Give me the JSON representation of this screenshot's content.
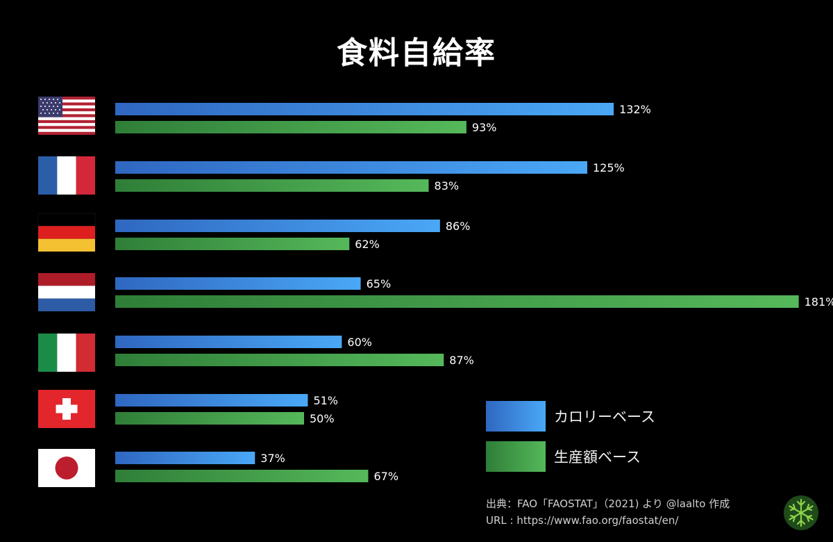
{
  "title": "食料自給率",
  "legend": {
    "calorie_label": "カロリーベース",
    "production_label": "生産額ベース"
  },
  "colors": {
    "calorie_start": "#2f67c1",
    "calorie_end": "#4aa8f6",
    "production_start": "#2f7e38",
    "production_end": "#55b85a",
    "background": "#000000"
  },
  "source": {
    "line1": "出典：FAO「FAOSTAT」（2021) より @laalto 作成",
    "line2": "URL : https://www.fao.org/faostat/en/"
  },
  "chart_data": {
    "type": "bar",
    "orientation": "horizontal",
    "title": "食料自給率",
    "categories": [
      "us-flag",
      "france-flag",
      "germany-flag",
      "netherlands-flag",
      "italy-flag",
      "switzerland-flag",
      "japan-flag"
    ],
    "series": [
      {
        "name": "カロリーベース",
        "values": [
          132,
          125,
          86,
          65,
          60,
          51,
          37
        ]
      },
      {
        "name": "生産額ベース",
        "values": [
          93,
          83,
          62,
          181,
          87,
          50,
          67
        ]
      }
    ],
    "value_suffix": "%",
    "legend_position": "bottom-right",
    "grid": false
  }
}
